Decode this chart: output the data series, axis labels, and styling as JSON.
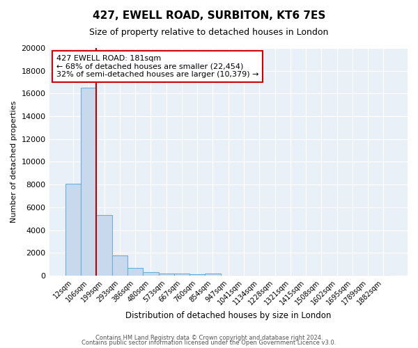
{
  "title": "427, EWELL ROAD, SURBITON, KT6 7ES",
  "subtitle": "Size of property relative to detached houses in London",
  "xlabel": "Distribution of detached houses by size in London",
  "ylabel": "Number of detached properties",
  "bar_labels": [
    "12sqm",
    "106sqm",
    "199sqm",
    "293sqm",
    "386sqm",
    "480sqm",
    "573sqm",
    "667sqm",
    "760sqm",
    "854sqm",
    "947sqm",
    "1041sqm",
    "1134sqm",
    "1228sqm",
    "1321sqm",
    "1415sqm",
    "1508sqm",
    "1602sqm",
    "1695sqm",
    "1789sqm",
    "1882sqm"
  ],
  "bar_heights": [
    8100,
    16500,
    5300,
    1800,
    700,
    300,
    200,
    150,
    100,
    150,
    0,
    0,
    0,
    0,
    0,
    0,
    0,
    0,
    0,
    0,
    0
  ],
  "bar_color": "#c8d9ee",
  "bar_edge_color": "#6baed6",
  "vline_x_data": 1.5,
  "vline_color": "#bb0000",
  "ylim": [
    0,
    20000
  ],
  "yticks": [
    0,
    2000,
    4000,
    6000,
    8000,
    10000,
    12000,
    14000,
    16000,
    18000,
    20000
  ],
  "annotation_title": "427 EWELL ROAD: 181sqm",
  "annotation_line1": "← 68% of detached houses are smaller (22,454)",
  "annotation_line2": "32% of semi-detached houses are larger (10,379) →",
  "annotation_box_color": "#ffffff",
  "annotation_border_color": "#cc0000",
  "footer_line1": "Contains HM Land Registry data © Crown copyright and database right 2024.",
  "footer_line2": "Contains public sector information licensed under the Open Government Licence v3.0.",
  "background_color": "#ffffff",
  "plot_bg_color": "#eaf0f8"
}
